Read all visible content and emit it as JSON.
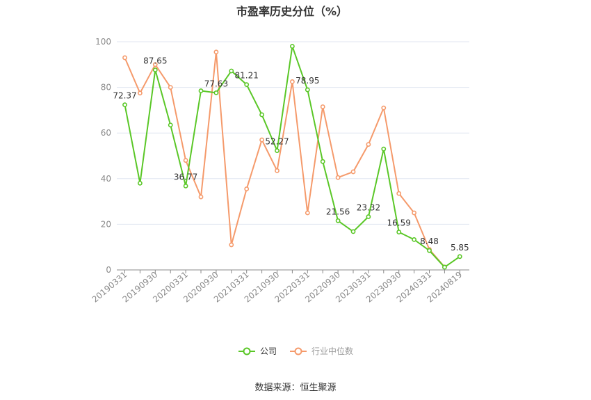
{
  "chart_data": {
    "type": "line",
    "title": "市盈率历史分位（%）",
    "xlabel": "",
    "ylabel": "",
    "ylim": [
      0,
      100
    ],
    "yticks": [
      0,
      20,
      40,
      60,
      80,
      100
    ],
    "grid": true,
    "legend_position": "bottom",
    "x": [
      "20190331",
      "20190630",
      "20190930",
      "20191231",
      "20200331",
      "20200630",
      "20200930",
      "20201231",
      "20210331",
      "20210630",
      "20210930",
      "20211231",
      "20220331",
      "20220630",
      "20220930",
      "20221231",
      "20230331",
      "20230630",
      "20230930",
      "20231231",
      "20240331",
      "20240630",
      "20240819"
    ],
    "x_tick_labels": [
      "20190331",
      "20190930",
      "20200331",
      "20200930",
      "20210331",
      "20210930",
      "20220331",
      "20220930",
      "20230331",
      "20230930",
      "20240331",
      "20240819"
    ],
    "series": [
      {
        "name": "公司",
        "color": "#5ac727",
        "values": [
          72.37,
          38,
          87.65,
          63.5,
          36.77,
          78.5,
          77.63,
          87.2,
          81.21,
          68,
          52.27,
          98,
          78.95,
          47.5,
          21.56,
          16.8,
          23.32,
          53,
          16.59,
          13.3,
          8.48,
          1.2,
          5.85
        ],
        "data_labels": [
          "72.37",
          "",
          "87.65",
          "",
          "36.77",
          "",
          "77.63",
          "",
          "81.21",
          "",
          "52.27",
          "",
          "78.95",
          "",
          "21.56",
          "",
          "23.32",
          "",
          "16.59",
          "",
          "8.48",
          "",
          "5.85"
        ]
      },
      {
        "name": "行业中位数",
        "color": "#f59a6b",
        "values": [
          93,
          77.5,
          90,
          80,
          48,
          32,
          95.5,
          11,
          35.5,
          57,
          43.5,
          82.5,
          25,
          71.5,
          40.5,
          43,
          55,
          71,
          33.5,
          25,
          9,
          1.3,
          null
        ]
      }
    ]
  },
  "source_text": "数据来源：恒生聚源"
}
